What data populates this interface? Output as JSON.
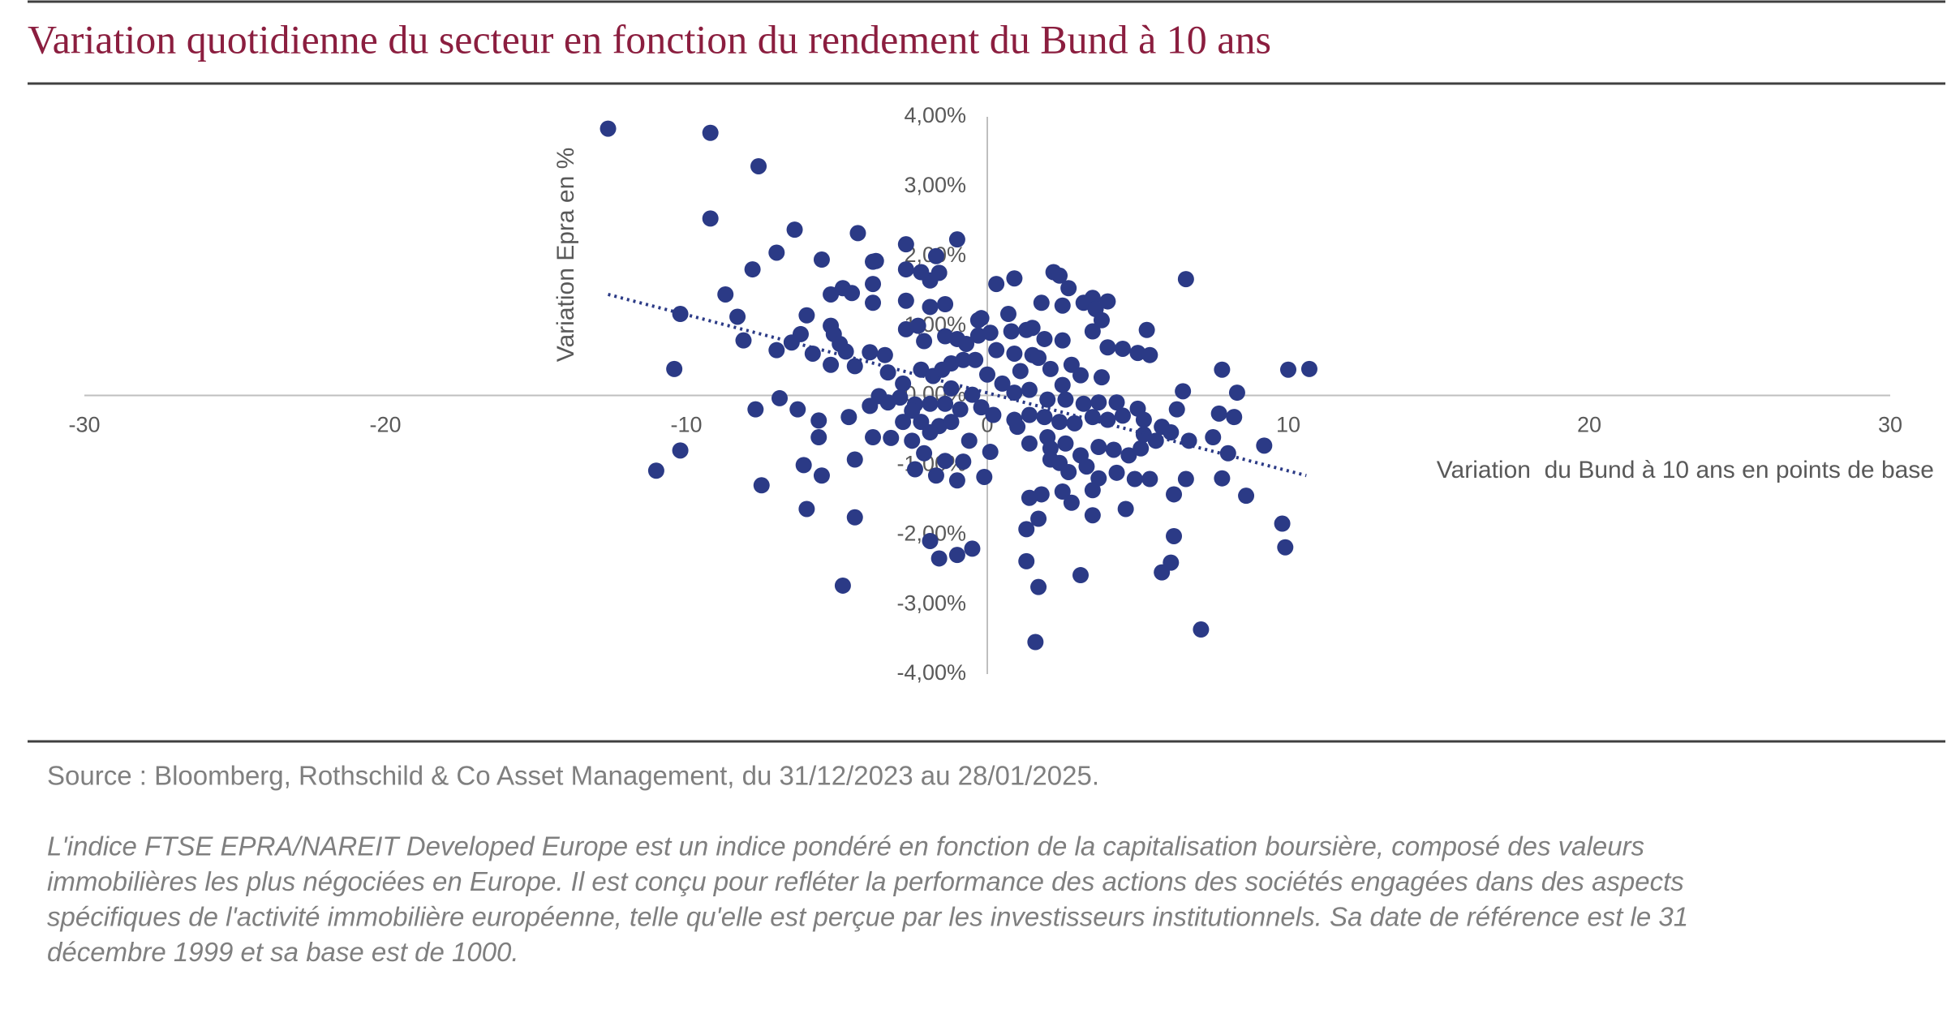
{
  "chart_data": {
    "type": "scatter",
    "title": "Variation quotidienne du secteur en fonction du rendement du Bund à 10 ans",
    "x_label": "Variation  du Bund à 10 ans en points de base",
    "y_label": "Variation Epra en %",
    "color": "#2b3a86",
    "xlim": [
      -30,
      30
    ],
    "xticks": [
      -30,
      -20,
      -10,
      0,
      10,
      20,
      30
    ],
    "ylim": [
      -4,
      4
    ],
    "yticks": [
      {
        "value": 4,
        "label": "4,00%"
      },
      {
        "value": 3,
        "label": "3,00%"
      },
      {
        "value": 2,
        "label": "2,00%"
      },
      {
        "value": 1,
        "label": "1,00%"
      },
      {
        "value": 0,
        "label": "0,00%"
      },
      {
        "value": -1,
        "label": "-1,00%"
      },
      {
        "value": -2,
        "label": "-2,00%"
      },
      {
        "value": -3,
        "label": "-3,00%"
      },
      {
        "value": -4,
        "label": "-4,00%"
      }
    ],
    "x": [
      -12.6,
      -9.2,
      -7.6,
      -9.2,
      -6.4,
      -4.3,
      -7.0,
      -5.5,
      -7.8,
      -2.7,
      -1.0,
      -8.7,
      -10.2,
      -8.3,
      -8.1,
      -10.4,
      -11.0,
      -10.2,
      -7.7,
      -7.5,
      -6.0,
      -4.8,
      -4.4,
      -6.1,
      -5.5,
      -6.9,
      -6.3,
      -5.6,
      -5.6,
      -4.4,
      -4.7,
      -5.2,
      -4.8,
      -4.5,
      -3.8,
      -3.7,
      -3.8,
      -3.8,
      -6.0,
      -6.2,
      -6.5,
      -7.0,
      -5.8,
      -5.2,
      -5.1,
      -4.9,
      -5.2,
      -4.4,
      -3.9,
      -3.4,
      -3.3,
      -2.8,
      -3.6,
      -3.3,
      -3.9,
      -4.6,
      -3.8,
      -3.2,
      -2.8,
      -2.5,
      -2.1,
      -2.4,
      -1.7,
      -1.0,
      -1.4,
      -0.8,
      -0.6,
      -0.1,
      0.1,
      -1.9,
      -1.6,
      -1.0,
      -0.5,
      -2.2,
      -1.8,
      -1.5,
      -1.2,
      -0.8,
      -0.4,
      0.0,
      -0.7,
      -1.0,
      -0.3,
      0.1,
      -0.3,
      -0.2,
      -1.4,
      -1.9,
      -1.9,
      -1.6,
      -2.2,
      -1.7,
      -2.7,
      -2.7,
      -2.7,
      -2.3,
      -2.1,
      -1.4,
      -1.2,
      -1.4,
      -0.9,
      -0.5,
      -0.2,
      -1.9,
      -2.4,
      -2.2,
      -1.6,
      -1.2,
      -1.9,
      0.3,
      0.9,
      0.7,
      0.8,
      1.3,
      1.5,
      1.9,
      2.5,
      0.3,
      0.9,
      1.5,
      1.7,
      1.1,
      2.1,
      2.8,
      2.5,
      3.1,
      3.8,
      0.5,
      0.9,
      1.4,
      2.0,
      2.6,
      3.2,
      3.7,
      4.3,
      5.0,
      0.2,
      0.9,
      1.4,
      1.9,
      2.4,
      2.9,
      3.5,
      4.0,
      4.5,
      5.2,
      1.0,
      1.4,
      2.0,
      2.1,
      2.6,
      2.1,
      2.4,
      3.1,
      3.7,
      4.2,
      4.7,
      5.1,
      5.6,
      2.7,
      3.3,
      3.7,
      4.3,
      4.9,
      5.4,
      1.8,
      2.5,
      2.8,
      3.5,
      1.4,
      1.7,
      1.3,
      1.3,
      1.7,
      3.1,
      1.6,
      3.5,
      4.6,
      2.2,
      2.4,
      2.7,
      1.8,
      2.5,
      3.2,
      3.5,
      4.0,
      3.6,
      3.8,
      3.5,
      4.0,
      4.5,
      5.0,
      5.4,
      5.3,
      6.6,
      6.5,
      7.8,
      6.3,
      5.8,
      5.2,
      6.1,
      6.7,
      7.5,
      7.7,
      8.2,
      8.3,
      8.0,
      9.2,
      10.0,
      10.7,
      6.6,
      6.2,
      7.8,
      8.6,
      6.2,
      6.1,
      5.8,
      7.1,
      9.8,
      9.9,
      -2.5,
      -2.9
    ],
    "values": [
      3.83,
      3.77,
      3.29,
      2.54,
      2.38,
      2.33,
      2.05,
      1.95,
      1.81,
      2.17,
      2.24,
      1.45,
      1.17,
      1.13,
      0.79,
      0.38,
      -1.08,
      -0.79,
      -0.2,
      -1.29,
      -1.63,
      -2.73,
      -1.75,
      -1.0,
      -1.15,
      -0.04,
      -0.2,
      -0.36,
      -0.6,
      -0.92,
      0.63,
      1.45,
      1.54,
      1.47,
      1.92,
      1.93,
      1.6,
      1.33,
      1.15,
      0.88,
      0.76,
      0.65,
      0.6,
      1.0,
      0.88,
      0.74,
      0.44,
      0.42,
      0.62,
      0.58,
      0.33,
      0.17,
      -0.01,
      -0.1,
      -0.15,
      -0.31,
      -0.6,
      -0.61,
      -0.38,
      -0.65,
      -0.83,
      -1.06,
      -1.15,
      -1.22,
      -0.94,
      -0.95,
      -0.65,
      -1.17,
      -0.81,
      -2.09,
      -2.34,
      -2.29,
      -2.2,
      0.37,
      0.28,
      0.37,
      0.46,
      0.51,
      0.51,
      0.3,
      0.74,
      0.81,
      0.86,
      0.9,
      1.08,
      1.11,
      1.31,
      1.27,
      1.65,
      1.76,
      1.77,
      2.0,
      1.81,
      1.36,
      0.95,
      1.0,
      0.78,
      0.85,
      0.1,
      -0.12,
      -0.2,
      0.01,
      -0.17,
      -0.12,
      -0.13,
      -0.38,
      -0.44,
      -0.38,
      -0.53,
      1.6,
      1.68,
      1.17,
      0.92,
      0.94,
      0.97,
      0.81,
      0.79,
      0.65,
      0.6,
      0.58,
      0.54,
      0.35,
      0.38,
      0.44,
      0.15,
      0.29,
      0.26,
      0.17,
      0.04,
      0.08,
      -0.06,
      -0.06,
      -0.12,
      -0.1,
      -0.1,
      -0.19,
      -0.28,
      -0.35,
      -0.28,
      -0.31,
      -0.38,
      -0.4,
      -0.31,
      -0.35,
      -0.29,
      -0.35,
      -0.45,
      -0.69,
      -0.6,
      -0.76,
      -0.69,
      -0.92,
      -0.97,
      -0.86,
      -0.74,
      -0.78,
      -0.86,
      -0.76,
      -0.65,
      -1.1,
      -1.02,
      -1.19,
      -1.11,
      -1.2,
      -1.2,
      -1.42,
      -1.38,
      -1.54,
      -1.36,
      -1.47,
      -1.77,
      -1.92,
      -2.38,
      -2.75,
      -2.58,
      -3.54,
      -1.72,
      -1.63,
      1.77,
      1.72,
      1.54,
      1.33,
      1.29,
      1.33,
      1.4,
      1.35,
      1.24,
      1.08,
      0.92,
      0.69,
      0.67,
      0.61,
      0.58,
      0.94,
      1.67,
      0.06,
      0.37,
      -0.2,
      -0.45,
      -0.56,
      -0.53,
      -0.65,
      -0.6,
      -0.26,
      -0.31,
      0.04,
      -0.83,
      -0.72,
      0.37,
      0.38,
      -1.2,
      -1.42,
      -1.19,
      -1.44,
      -2.02,
      -2.4,
      -2.54,
      -3.36,
      -1.84,
      -2.18,
      -0.22,
      -0.03
    ],
    "trendline": {
      "x": [
        -12.6,
        10.6
      ],
      "values": [
        1.45,
        -1.15
      ],
      "color": "#2b3a86"
    }
  },
  "source": "Source : Bloomberg, Rothschild & Co Asset Management, du 31/12/2023 au 28/01/2025.",
  "note_lines": [
    "L'indice FTSE EPRA/NAREIT Developed Europe est un indice pondéré en fonction de la capitalisation boursière, composé des valeurs",
    "immobilières les plus négociées en Europe. Il est conçu pour refléter la performance des actions des sociétés engagées dans des aspects",
    "spécifiques de l'activité immobilière européenne, telle qu'elle est perçue par les investisseurs institutionnels. Sa date de référence est le 31",
    "décembre 1999 et sa base est de 1000."
  ]
}
